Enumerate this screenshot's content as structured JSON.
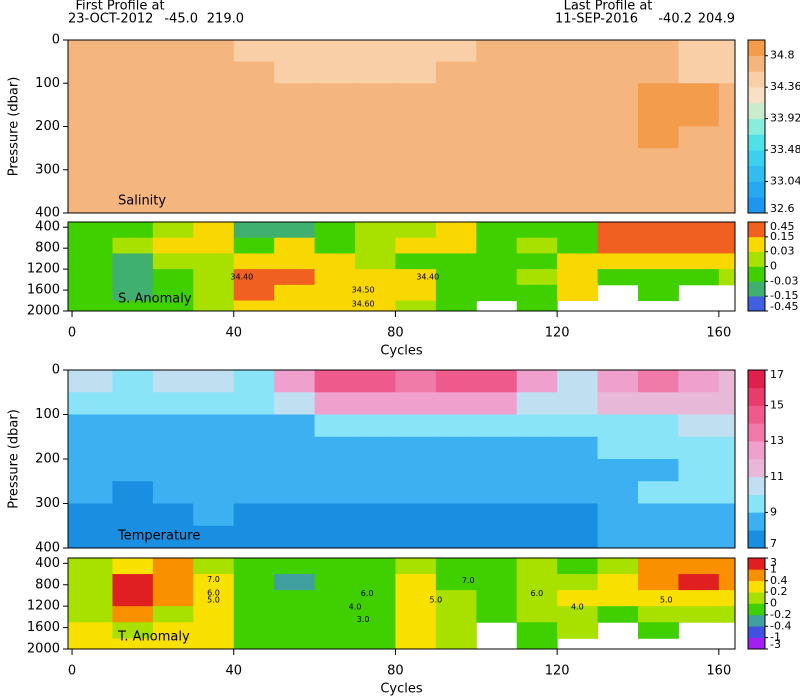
{
  "header": {
    "first_label": "First Profile at",
    "first_date": "23-OCT-2012",
    "first_lat": "-45.0",
    "first_lon": "219.0",
    "last_label": "Last Profile at",
    "last_date": "11-SEP-2016",
    "last_lat": "-40.2",
    "last_lon": "204.9"
  },
  "chart_data": [
    {
      "type": "heatmap",
      "title": "Salinity",
      "ylabel": "Pressure (dbar)",
      "xlim": [
        -1,
        164
      ],
      "ylim": [
        400,
        0
      ],
      "yticks": [
        0,
        100,
        200,
        300,
        400
      ],
      "x_edges": [
        -1,
        10,
        20,
        30,
        40,
        50,
        60,
        70,
        80,
        90,
        100,
        110,
        120,
        130,
        140,
        150,
        160,
        164
      ],
      "y_edges": [
        0,
        50,
        100,
        150,
        200,
        250,
        300,
        350,
        400
      ],
      "levels": [
        32.6,
        32.82,
        33.04,
        33.26,
        33.48,
        33.7,
        33.92,
        34.14,
        34.36,
        34.58,
        34.8,
        35.02
      ],
      "colors": [
        "#1e96f0",
        "#28a8f0",
        "#32bcf0",
        "#3cd0f0",
        "#50e0e8",
        "#8cecdc",
        "#c8eccc",
        "#f8e0c4",
        "#f8cfa6",
        "#f5b57e",
        "#f39c4c"
      ],
      "cbar_ticks": [
        32.6,
        33.04,
        33.48,
        33.92,
        34.36,
        34.8
      ],
      "z": [
        [
          34.65,
          34.65,
          34.65,
          34.65,
          34.5,
          34.45,
          34.45,
          34.45,
          34.45,
          34.5,
          34.65,
          34.65,
          34.65,
          34.65,
          34.6,
          34.5,
          34.45
        ],
        [
          34.65,
          34.65,
          34.65,
          34.65,
          34.65,
          34.5,
          34.5,
          34.5,
          34.5,
          34.65,
          34.65,
          34.65,
          34.65,
          34.65,
          34.65,
          34.5,
          34.5
        ],
        [
          34.65,
          34.65,
          34.65,
          34.65,
          34.65,
          34.65,
          34.65,
          34.65,
          34.65,
          34.65,
          34.65,
          34.65,
          34.65,
          34.65,
          34.85,
          34.85,
          34.65
        ],
        [
          34.65,
          34.65,
          34.65,
          34.65,
          34.65,
          34.65,
          34.65,
          34.65,
          34.65,
          34.65,
          34.65,
          34.65,
          34.65,
          34.65,
          34.85,
          34.85,
          34.65
        ],
        [
          34.65,
          34.65,
          34.65,
          34.65,
          34.65,
          34.65,
          34.65,
          34.65,
          34.65,
          34.65,
          34.65,
          34.65,
          34.65,
          34.65,
          34.85,
          34.65,
          34.65
        ],
        [
          34.65,
          34.65,
          34.65,
          34.65,
          34.65,
          34.65,
          34.65,
          34.65,
          34.65,
          34.65,
          34.65,
          34.65,
          34.65,
          34.65,
          34.65,
          34.65,
          34.65
        ],
        [
          34.65,
          34.65,
          34.65,
          34.65,
          34.65,
          34.65,
          34.65,
          34.65,
          34.65,
          34.65,
          34.65,
          34.65,
          34.65,
          34.65,
          34.65,
          34.65,
          34.65
        ],
        [
          34.65,
          34.65,
          34.65,
          34.65,
          34.65,
          34.65,
          34.65,
          34.65,
          34.65,
          34.65,
          34.65,
          34.65,
          34.65,
          34.65,
          34.65,
          34.65,
          34.65
        ]
      ]
    },
    {
      "type": "heatmap",
      "title": "S. Anomaly",
      "xlabel": "Cycles",
      "xlim": [
        -1,
        164
      ],
      "ylim": [
        2000,
        300
      ],
      "xticks": [
        0,
        40,
        80,
        120,
        160
      ],
      "yticks": [
        400,
        800,
        1200,
        1600,
        2000
      ],
      "x_edges": [
        -1,
        10,
        20,
        30,
        40,
        50,
        60,
        70,
        80,
        90,
        100,
        110,
        120,
        130,
        140,
        150,
        160,
        164
      ],
      "y_edges": [
        300,
        600,
        900,
        1200,
        1500,
        1800,
        2000
      ],
      "levels": [
        -0.45,
        -0.15,
        -0.03,
        0,
        0.03,
        0.15,
        0.45
      ],
      "colors": [
        "#4060e0",
        "#40b070",
        "#40d000",
        "#a8e000",
        "#f8d800",
        "#f06020"
      ],
      "cbar_ticks": [
        0.45,
        0.15,
        0.03,
        0,
        -0.03,
        -0.15,
        -0.45
      ],
      "z": [
        [
          -0.01,
          -0.01,
          0.02,
          0.1,
          -0.08,
          -0.08,
          -0.01,
          0.02,
          0.02,
          0.1,
          -0.01,
          -0.01,
          -0.01,
          0.3,
          0.3,
          0.3,
          0.3
        ],
        [
          -0.01,
          0.02,
          0.1,
          0.1,
          -0.02,
          0.1,
          -0.01,
          0.02,
          0.1,
          0.1,
          -0.01,
          0.02,
          -0.01,
          0.3,
          0.3,
          0.3,
          0.3
        ],
        [
          -0.01,
          -0.08,
          0.02,
          0.02,
          0.1,
          0.1,
          0.1,
          0.02,
          -0.01,
          -0.01,
          -0.01,
          -0.01,
          0.1,
          0.1,
          0.1,
          0.1,
          0.1
        ],
        [
          -0.01,
          -0.08,
          -0.01,
          0.02,
          0.3,
          0.3,
          0.1,
          0.1,
          0.1,
          -0.01,
          -0.01,
          0.02,
          0.1,
          -0.01,
          -0.01,
          -0.01,
          0.02
        ],
        [
          -0.01,
          -0.08,
          -0.01,
          0.02,
          0.3,
          0.1,
          0.1,
          0.1,
          0.1,
          -0.01,
          -0.01,
          -0.01,
          0.1,
          null,
          -0.01,
          null,
          null
        ],
        [
          -0.01,
          -0.01,
          -0.01,
          0.02,
          0.1,
          0.1,
          0.1,
          0.1,
          0.02,
          -0.01,
          null,
          -0.01,
          null,
          null,
          null,
          null,
          null
        ]
      ],
      "annotations": [
        {
          "text": "34.40",
          "x": 42,
          "y": 1350
        },
        {
          "text": "34.40",
          "x": 88,
          "y": 1350
        },
        {
          "text": "34.50",
          "x": 72,
          "y": 1600
        },
        {
          "text": "34.60",
          "x": 72,
          "y": 1870
        }
      ]
    },
    {
      "type": "heatmap",
      "title": "Temperature",
      "ylabel": "Pressure (dbar)",
      "xlim": [
        -1,
        164
      ],
      "ylim": [
        400,
        0
      ],
      "yticks": [
        0,
        100,
        200,
        300,
        400
      ],
      "x_edges": [
        -1,
        10,
        20,
        30,
        40,
        50,
        60,
        70,
        80,
        90,
        100,
        110,
        120,
        130,
        140,
        150,
        160,
        164
      ],
      "y_edges": [
        0,
        50,
        100,
        150,
        200,
        250,
        300,
        350,
        400
      ],
      "levels": [
        7,
        8,
        9,
        10,
        11,
        12,
        13,
        14,
        15,
        16,
        17
      ],
      "colors": [
        "#1a8ee0",
        "#3cb0f0",
        "#8ae4f8",
        "#c0dff0",
        "#e8b8d8",
        "#f0a0cc",
        "#f07aa8",
        "#ee5a8c",
        "#e83c6c",
        "#e0204c"
      ],
      "cbar_ticks": [
        17,
        15,
        13,
        11,
        9,
        7
      ],
      "z": [
        [
          10.5,
          9.5,
          10.5,
          10.5,
          9.5,
          12.5,
          14.5,
          14.5,
          13.5,
          14.5,
          14.5,
          12.5,
          10.5,
          12.5,
          13.5,
          12.5,
          11.5
        ],
        [
          9.5,
          9.5,
          9.5,
          9.5,
          9.5,
          10.5,
          12.5,
          12.5,
          12.5,
          12.5,
          12.5,
          10.5,
          10.5,
          11.5,
          11.5,
          11.5,
          11.5
        ],
        [
          8.5,
          8.5,
          8.5,
          8.5,
          8.5,
          8.5,
          9.5,
          9.5,
          9.5,
          9.5,
          9.5,
          9.5,
          9.5,
          9.5,
          9.5,
          10.5,
          10.5
        ],
        [
          8.5,
          8.5,
          8.5,
          8.5,
          8.5,
          8.5,
          8.5,
          8.5,
          8.5,
          8.5,
          8.5,
          8.5,
          8.5,
          9.5,
          9.5,
          9.5,
          9.5
        ],
        [
          8.5,
          8.5,
          8.5,
          8.5,
          8.5,
          8.5,
          8.5,
          8.5,
          8.5,
          8.5,
          8.5,
          8.5,
          8.5,
          8.5,
          8.5,
          9.5,
          9.5
        ],
        [
          8.5,
          7.5,
          8.5,
          8.5,
          8.5,
          8.5,
          8.5,
          8.5,
          8.5,
          8.5,
          8.5,
          8.5,
          8.5,
          8.5,
          9.5,
          9.5,
          9.5
        ],
        [
          7.5,
          7.5,
          7.5,
          8.5,
          7.5,
          7.5,
          7.5,
          7.5,
          7.5,
          7.5,
          7.5,
          7.5,
          7.5,
          8.5,
          8.5,
          8.5,
          8.5
        ],
        [
          7.5,
          7.5,
          7.5,
          7.5,
          7.5,
          7.5,
          7.5,
          7.5,
          7.5,
          7.5,
          7.5,
          7.5,
          7.5,
          8.5,
          8.5,
          8.5,
          8.5
        ]
      ]
    },
    {
      "type": "heatmap",
      "title": "T. Anomaly",
      "xlabel": "Cycles",
      "xlim": [
        -1,
        164
      ],
      "ylim": [
        2000,
        300
      ],
      "xticks": [
        0,
        40,
        80,
        120,
        160
      ],
      "yticks": [
        400,
        800,
        1200,
        1600,
        2000
      ],
      "x_edges": [
        -1,
        10,
        20,
        30,
        40,
        50,
        60,
        70,
        80,
        90,
        100,
        110,
        120,
        130,
        140,
        150,
        160,
        164
      ],
      "y_edges": [
        300,
        600,
        900,
        1200,
        1500,
        1800,
        2000
      ],
      "levels": [
        -3,
        -1,
        -0.4,
        -0.2,
        0,
        0.2,
        0.4,
        1,
        3
      ],
      "colors": [
        "#a020f0",
        "#4050e0",
        "#40a0a0",
        "#40d000",
        "#a8e000",
        "#f8e000",
        "#f89000",
        "#e02020"
      ],
      "cbar_ticks": [
        3,
        1,
        0.4,
        0.2,
        0,
        -0.2,
        -0.4,
        -1,
        -3
      ],
      "z": [
        [
          0.1,
          0.3,
          0.7,
          0.1,
          -0.1,
          -0.1,
          -0.1,
          -0.1,
          0.1,
          -0.1,
          -0.1,
          0.1,
          -0.1,
          0.1,
          0.7,
          0.7,
          0.7
        ],
        [
          0.1,
          1.5,
          0.7,
          0.3,
          -0.1,
          -0.3,
          -0.1,
          -0.1,
          0.3,
          -0.1,
          -0.1,
          0.1,
          0.1,
          0.3,
          0.7,
          1.5,
          0.7
        ],
        [
          0.1,
          1.5,
          0.7,
          0.3,
          -0.1,
          -0.1,
          -0.1,
          -0.1,
          0.3,
          0.1,
          -0.1,
          0.1,
          0.3,
          0.3,
          0.3,
          0.3,
          0.3
        ],
        [
          0.1,
          0.7,
          0.1,
          0.3,
          -0.1,
          -0.1,
          -0.1,
          -0.1,
          0.3,
          0.1,
          -0.1,
          0.1,
          0.1,
          -0.1,
          0.1,
          0.1,
          0.1
        ],
        [
          0.3,
          0.1,
          0.3,
          0.3,
          -0.1,
          -0.1,
          -0.1,
          -0.1,
          0.3,
          0.1,
          null,
          -0.1,
          0.1,
          null,
          -0.1,
          null,
          null
        ],
        [
          0.3,
          0.3,
          0.3,
          0.3,
          -0.1,
          -0.1,
          -0.1,
          -0.1,
          0.3,
          0.1,
          null,
          -0.1,
          null,
          null,
          null,
          null,
          null
        ]
      ],
      "annotations": [
        {
          "text": "7.0",
          "x": 35,
          "y": 700
        },
        {
          "text": "6.0",
          "x": 35,
          "y": 950
        },
        {
          "text": "5.0",
          "x": 35,
          "y": 1080
        },
        {
          "text": "4.0",
          "x": 70,
          "y": 1220
        },
        {
          "text": "3.0",
          "x": 72,
          "y": 1450
        },
        {
          "text": "7.0",
          "x": 98,
          "y": 720
        },
        {
          "text": "6.0",
          "x": 73,
          "y": 960
        },
        {
          "text": "5.0",
          "x": 90,
          "y": 1080
        },
        {
          "text": "6.0",
          "x": 115,
          "y": 960
        },
        {
          "text": "4.0",
          "x": 125,
          "y": 1220
        },
        {
          "text": "5.0",
          "x": 147,
          "y": 1080
        }
      ]
    }
  ]
}
